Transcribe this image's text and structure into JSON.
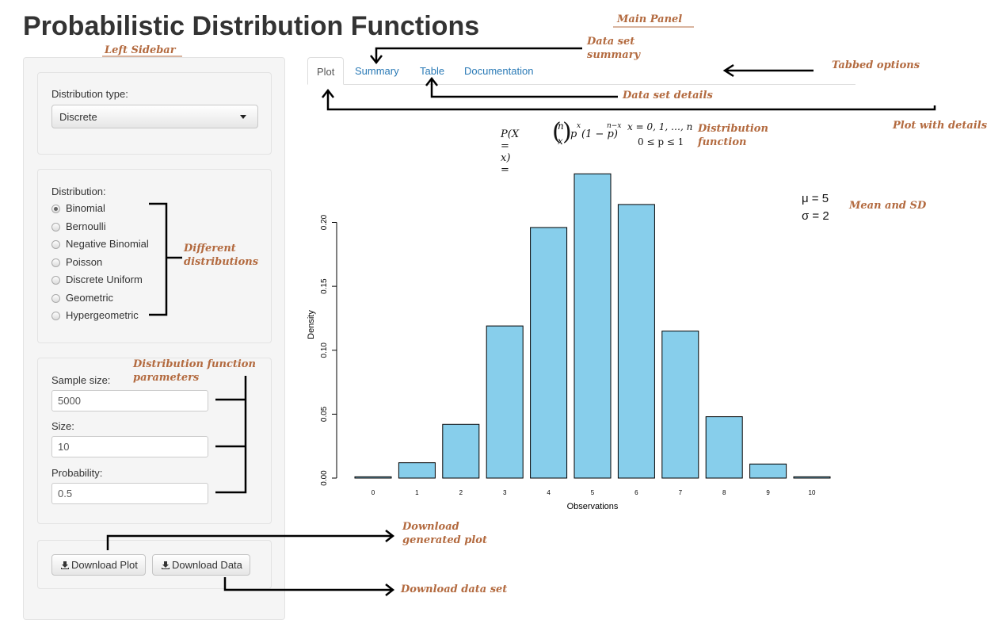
{
  "title": "Probabilistic Distribution Functions",
  "sidebar": {
    "dist_type_label": "Distribution type:",
    "dist_type_value": "Discrete",
    "distribution_label": "Distribution:",
    "distributions": [
      "Binomial",
      "Bernoulli",
      "Negative Binomial",
      "Poisson",
      "Discrete Uniform",
      "Geometric",
      "Hypergeometric"
    ],
    "selected_distribution": "Binomial",
    "sample_size_label": "Sample size:",
    "sample_size_value": "5000",
    "size_label": "Size:",
    "size_value": "10",
    "probability_label": "Probability:",
    "probability_value": "0.5",
    "download_plot_label": "Download Plot",
    "download_data_label": "Download Data"
  },
  "tabs": [
    {
      "label": "Plot",
      "active": true
    },
    {
      "label": "Summary",
      "active": false
    },
    {
      "label": "Table",
      "active": false
    },
    {
      "label": "Documentation",
      "active": false
    }
  ],
  "formula": {
    "lhs": "P(X = x) =",
    "binom_top": "n",
    "binom_bottom": "x",
    "rhs": "p",
    "exp1": "x",
    "rhs2": "(1 − p)",
    "exp2": "n−x",
    "cond1": "x = 0, 1, …, n",
    "cond2": "0 ≤ p ≤ 1"
  },
  "stats": {
    "mean": "μ = 5",
    "sd": "σ = 2"
  },
  "annotations": {
    "main_panel": "Main Panel",
    "left_sidebar": "Left Sidebar",
    "data_set_summary_1": "Data set",
    "data_set_summary_2": "summary",
    "tabbed_options": "Tabbed options",
    "data_set_details": "Data set details",
    "plot_with_details": "Plot with details",
    "distribution_function_1": "Distribution",
    "distribution_function_2": "function",
    "mean_and_sd": "Mean and SD",
    "different_distributions_1": "Different",
    "different_distributions_2": "distributions",
    "dist_params_1": "Distribution function",
    "dist_params_2": "parameters",
    "download_plot_1": "Download",
    "download_plot_2": "generated plot",
    "download_data": "Download data set"
  },
  "colors": {
    "bar_fill": "#87ceeb",
    "annotation": "#b36a3f",
    "link": "#2a7ab6"
  },
  "chart_data": {
    "type": "bar",
    "categories": [
      "0",
      "1",
      "2",
      "3",
      "4",
      "5",
      "6",
      "7",
      "8",
      "9",
      "10"
    ],
    "values": [
      0.001,
      0.012,
      0.042,
      0.119,
      0.196,
      0.238,
      0.214,
      0.115,
      0.048,
      0.011,
      0.001
    ],
    "xlabel": "Observations",
    "ylabel": "Density",
    "yticks": [
      "0.00",
      "0.05",
      "0.10",
      "0.15",
      "0.20"
    ],
    "ylim": [
      0,
      0.24
    ]
  }
}
